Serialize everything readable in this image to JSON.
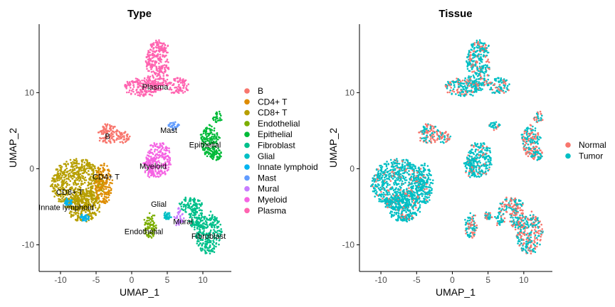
{
  "chart_data": [
    {
      "type": "scatter",
      "title": "Type",
      "xlabel": "UMAP_1",
      "ylabel": "UMAP_2",
      "xlim": [
        -13,
        14
      ],
      "ylim": [
        -13.5,
        19
      ],
      "xticks": [
        -10,
        -5,
        0,
        5,
        10
      ],
      "yticks": [
        -10,
        0,
        10
      ],
      "legend_position": "right",
      "legend": [
        "B",
        "CD4+ T",
        "CD8+ T",
        "Endothelial",
        "Epithelial",
        "Fibroblast",
        "Glial",
        "Innate lymphoid",
        "Mast",
        "Mural",
        "Myeloid",
        "Plasma"
      ],
      "colors": {
        "B": "#F8766D",
        "CD4+ T": "#DE8C00",
        "CD8+ T": "#B79F00",
        "Endothelial": "#7CAE00",
        "Epithelial": "#00BA38",
        "Fibroblast": "#00C08B",
        "Glial": "#00BFC4",
        "Innate lymphoid": "#00B4F0",
        "Mast": "#619CFF",
        "Mural": "#C77CFF",
        "Myeloid": "#F564E3",
        "Plasma": "#FF64B0"
      },
      "cluster_labels": [
        {
          "text": "Plasma",
          "x": 3.3,
          "y": 10.4
        },
        {
          "text": "Mast",
          "x": 5.2,
          "y": 4.7
        },
        {
          "text": "B",
          "x": -3.4,
          "y": 3.9
        },
        {
          "text": "Epithelial",
          "x": 10.3,
          "y": 2.8
        },
        {
          "text": "Myeloid",
          "x": 3.0,
          "y": 0.0
        },
        {
          "text": "CD4+ T",
          "x": -3.6,
          "y": -1.4
        },
        {
          "text": "CD8+ T",
          "x": -8.7,
          "y": -3.4
        },
        {
          "text": "Innate lymphoid",
          "x": -9.2,
          "y": -5.4
        },
        {
          "text": "Glial",
          "x": 3.8,
          "y": -5.0
        },
        {
          "text": "Mural",
          "x": 7.2,
          "y": -7.3
        },
        {
          "text": "Endothelial",
          "x": 1.7,
          "y": -8.6
        },
        {
          "text": "Fibroblast",
          "x": 10.8,
          "y": -9.2
        }
      ],
      "clusters": [
        {
          "name": "Plasma",
          "regions": [
            {
              "cx": 3.6,
              "cy": 13.5,
              "rx": 1.6,
              "ry": 3.3
            },
            {
              "cx": 1.5,
              "cy": 10.7,
              "rx": 2.5,
              "ry": 1.2
            },
            {
              "cx": 6.5,
              "cy": 10.9,
              "rx": 1.6,
              "ry": 1.0
            },
            {
              "cx": 4.3,
              "cy": 16.0,
              "rx": 0.9,
              "ry": 0.6
            }
          ]
        },
        {
          "name": "Mast",
          "regions": [
            {
              "cx": 5.8,
              "cy": 5.7,
              "rx": 0.9,
              "ry": 0.5
            }
          ]
        },
        {
          "name": "B",
          "regions": [
            {
              "cx": -3.2,
              "cy": 4.6,
              "rx": 1.5,
              "ry": 1.3
            },
            {
              "cx": -1.0,
              "cy": 4.2,
              "rx": 0.9,
              "ry": 0.8
            }
          ]
        },
        {
          "name": "Epithelial",
          "regions": [
            {
              "cx": 11.0,
              "cy": 3.6,
              "rx": 1.3,
              "ry": 2.1
            },
            {
              "cx": 12.0,
              "cy": 6.7,
              "rx": 0.6,
              "ry": 0.9
            },
            {
              "cx": 11.8,
              "cy": 2.0,
              "rx": 0.9,
              "ry": 0.9
            }
          ]
        },
        {
          "name": "Myeloid",
          "regions": [
            {
              "cx": 3.8,
              "cy": 1.2,
              "rx": 1.7,
              "ry": 2.4
            },
            {
              "cx": 2.5,
              "cy": 0.4,
              "rx": 0.8,
              "ry": 1.4
            }
          ]
        },
        {
          "name": "CD8+ T",
          "regions": [
            {
              "cx": -7.6,
              "cy": -2.0,
              "rx": 3.7,
              "ry": 3.3
            },
            {
              "cx": -6.7,
              "cy": -5.0,
              "rx": 2.3,
              "ry": 2.0
            }
          ]
        },
        {
          "name": "CD4+ T",
          "regions": [
            {
              "cx": -4.0,
              "cy": -2.0,
              "rx": 1.2,
              "ry": 2.6
            }
          ]
        },
        {
          "name": "Innate lymphoid",
          "regions": [
            {
              "cx": -8.9,
              "cy": -4.4,
              "rx": 0.5,
              "ry": 0.4
            },
            {
              "cx": -6.6,
              "cy": -6.4,
              "rx": 0.6,
              "ry": 0.4
            }
          ]
        },
        {
          "name": "Glial",
          "regions": [
            {
              "cx": 5.0,
              "cy": -6.2,
              "rx": 0.5,
              "ry": 0.5
            }
          ]
        },
        {
          "name": "Endothelial",
          "regions": [
            {
              "cx": 2.6,
              "cy": -7.5,
              "rx": 0.9,
              "ry": 1.7
            }
          ]
        },
        {
          "name": "Mural",
          "regions": [
            {
              "cx": 6.7,
              "cy": -6.4,
              "rx": 0.6,
              "ry": 1.3
            }
          ]
        },
        {
          "name": "Fibroblast",
          "regions": [
            {
              "cx": 10.8,
              "cy": -8.5,
              "rx": 1.8,
              "ry": 2.7
            },
            {
              "cx": 8.3,
              "cy": -4.8,
              "rx": 1.6,
              "ry": 1.0
            },
            {
              "cx": 9.0,
              "cy": -6.5,
              "rx": 1.0,
              "ry": 1.5
            }
          ]
        }
      ]
    },
    {
      "type": "scatter",
      "title": "Tissue",
      "xlabel": "UMAP_1",
      "ylabel": "UMAP_2",
      "xlim": [
        -13,
        14
      ],
      "ylim": [
        -13.5,
        19
      ],
      "xticks": [
        -10,
        -5,
        0,
        5,
        10
      ],
      "yticks": [
        -10,
        0,
        10
      ],
      "legend_position": "right",
      "legend": [
        "Normal",
        "Tumor"
      ],
      "colors": {
        "Normal": "#F8766D",
        "Tumor": "#00BFC4"
      }
    }
  ]
}
